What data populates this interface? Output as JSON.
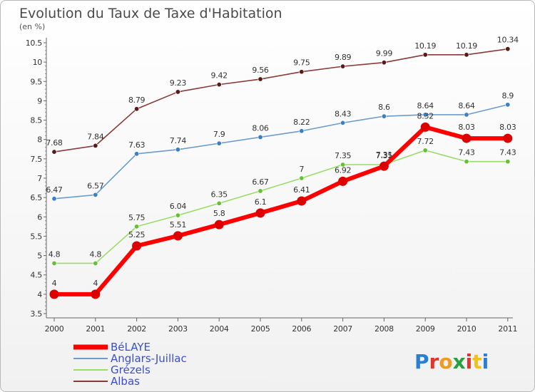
{
  "chart_data": {
    "type": "line",
    "title": "Evolution du Taux de Taxe d'Habitation",
    "subtitle": "(en %)",
    "categories": [
      "2000",
      "2001",
      "2002",
      "2003",
      "2004",
      "2005",
      "2006",
      "2007",
      "2008",
      "2009",
      "2010",
      "2011"
    ],
    "ylim": [
      3.5,
      10.5
    ],
    "yticks": [
      "3.5",
      "4",
      "4.5",
      "5",
      "5.5",
      "6",
      "6.5",
      "7",
      "7.5",
      "8",
      "8.5",
      "9",
      "9.5",
      "10",
      "10.5"
    ],
    "grid": false,
    "legend_position": "bottom-left",
    "series": [
      {
        "name": "BéLAYE",
        "color": "#ff0000",
        "marker": "#dd0000",
        "values": [
          4,
          4,
          5.25,
          5.51,
          5.8,
          6.1,
          6.41,
          6.92,
          7.31,
          8.32,
          8.03,
          8.03
        ],
        "labels": [
          "4",
          "4",
          "5.25",
          "5.51",
          "5.8",
          "6.1",
          "6.41",
          "6.92",
          "7.31",
          "8.32",
          "8.03",
          "8.03"
        ]
      },
      {
        "name": "Anglars-Juillac",
        "color": "#6a9ccc",
        "marker": "#3b7fc4",
        "values": [
          6.47,
          6.57,
          7.63,
          7.74,
          7.9,
          8.06,
          8.22,
          8.43,
          8.6,
          8.64,
          8.64,
          8.9
        ],
        "labels": [
          "6.47",
          "6.57",
          "7.63",
          "7.74",
          "7.9",
          "8.06",
          "8.22",
          "8.43",
          "8.6",
          "8.64",
          "8.64",
          "8.9"
        ]
      },
      {
        "name": "Grézels",
        "color": "#99dd66",
        "marker": "#66c033",
        "values": [
          4.8,
          4.8,
          5.75,
          6.04,
          6.35,
          6.67,
          7,
          7.35,
          7.35,
          7.72,
          7.43,
          7.43
        ],
        "labels": [
          "4.8",
          "4.8",
          "5.75",
          "6.04",
          "6.35",
          "6.67",
          "7",
          "7.35",
          "7.35",
          "7.72",
          "7.43",
          "7.43"
        ]
      },
      {
        "name": "Albas",
        "color": "#8b3a3a",
        "marker": "#5a1a1a",
        "values": [
          7.68,
          7.84,
          8.79,
          9.23,
          9.42,
          9.56,
          9.75,
          9.89,
          9.99,
          10.19,
          10.19,
          10.34
        ],
        "labels": [
          "7.68",
          "7.84",
          "8.79",
          "9.23",
          "9.42",
          "9.56",
          "9.75",
          "9.89",
          "9.99",
          "10.19",
          "10.19",
          "10.34"
        ]
      }
    ]
  },
  "legend": {
    "items": [
      "BéLAYE",
      "Anglars-Juillac",
      "Grézels",
      "Albas"
    ],
    "text_color": "#3a4fd0"
  },
  "logo": {
    "text": "Proxiti",
    "letter_colors": [
      "#2a7fd4",
      "#e0342d",
      "#f29a1f",
      "#2a9f3f",
      "#e0342d",
      "#f2c11f",
      "#2a7fd4"
    ]
  }
}
